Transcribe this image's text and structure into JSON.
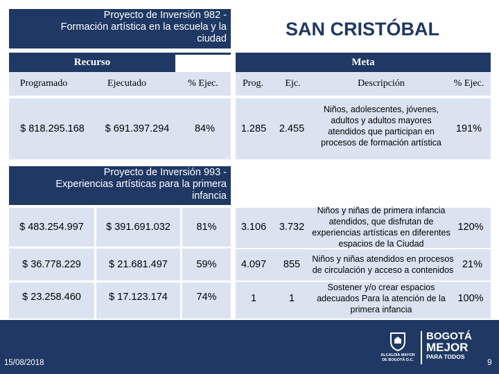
{
  "project1": {
    "title_lines": [
      "Proyecto de Inversión  982 -",
      "Formación artística en la escuela y la",
      "ciudad"
    ]
  },
  "city": "SAN CRISTÓBAL",
  "headers": {
    "recurso": "Recurso",
    "meta": "Meta",
    "programado": "Programado",
    "ejecutado": "Ejecutado",
    "pct_ejec": "% Ejec.",
    "prog": "Prog.",
    "ejc": "Ejc.",
    "descripcion": "Descripción",
    "pct_ejec_meta": "% Ejec."
  },
  "row1": {
    "programado": "$ 818.295.168",
    "ejecutado": "$ 691.397.294",
    "pct": "84%",
    "prog": "1.285",
    "ejc": "2.455",
    "descripcion": "Niños, adolescentes, jóvenes, adultos y adultos mayores atendidos que participan en procesos de formación artística",
    "pct_meta": "191%"
  },
  "project2": {
    "title_lines": [
      "Proyecto de Inversión  993 -",
      "Experiencias artísticas para la primera",
      "infancia"
    ]
  },
  "rows2": [
    {
      "programado": "$ 483.254.997",
      "ejecutado": "$ 391.691.032",
      "pct": "81%",
      "prog": "3.106",
      "ejc": "3.732",
      "descripcion": "Niños y niñas de primera infancia atendidos, que disfrutan de experiencias artísticas en diferentes espacios de la Ciudad",
      "pct_meta": "120%"
    },
    {
      "programado": "$ 36.778.229",
      "ejecutado": "$ 21.681.497",
      "pct": "59%",
      "prog": "4.097",
      "ejc": "855",
      "descripcion": "Niños y niñas atendidos en procesos de circulación y acceso a contenidos",
      "pct_meta": "21%"
    },
    {
      "programado": "$ 23.258.460",
      "ejecutado": "$ 17.123.174",
      "pct": "74%",
      "prog": "1",
      "ejc": "1",
      "descripcion": "Sostener y/o crear espacios adecuados Para la atención de la primera infancia",
      "pct_meta": "100%"
    }
  ],
  "footer": {
    "date": "15/08/2018",
    "page": "9",
    "logo_left_lines": [
      "ALCALDÍA MAYOR",
      "DE BOGOTÁ D.C."
    ],
    "logo_right_lines": [
      "BOGOTÁ",
      "MEJOR",
      "PARA TODOS"
    ]
  }
}
